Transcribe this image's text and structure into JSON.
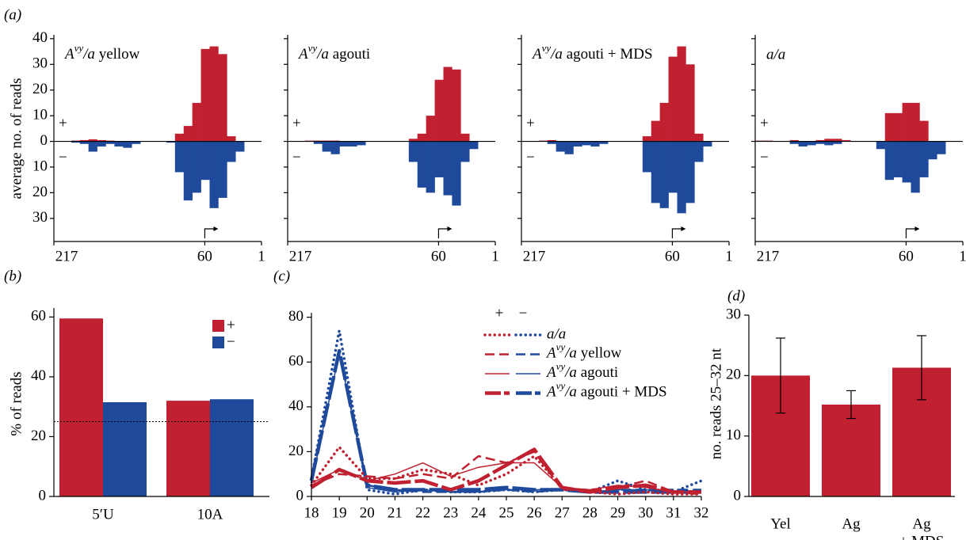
{
  "chart_data": [
    {
      "type": "mirrored_histogram",
      "panel_label": "(a)",
      "title": "Avy/a yellow",
      "ylabel": "average no. of reads",
      "plus_label": "+",
      "minus_label": "−",
      "bins": [
        217,
        208,
        199,
        190,
        181,
        172,
        163,
        154,
        145,
        136,
        127,
        118,
        109,
        100,
        91,
        82,
        73,
        64,
        55,
        46,
        37,
        28,
        19,
        10,
        1
      ],
      "xlim": [
        217,
        1
      ],
      "xticks": [
        217,
        60,
        1
      ],
      "ylim": [
        -39,
        41.5
      ],
      "yticks": [
        40,
        30,
        20,
        10,
        0,
        {
          "value": -10,
          "label": "10"
        },
        {
          "value": -20,
          "label": "20"
        },
        {
          "value": -30,
          "label": "30"
        }
      ],
      "series": [
        {
          "name": "+",
          "color": "#c0202f",
          "values": [
            0,
            0,
            0.3,
            0.5,
            0.8,
            0.5,
            0.3,
            0,
            0,
            0,
            0,
            0,
            0,
            0,
            3,
            6,
            15,
            36,
            37,
            34,
            2,
            0,
            0,
            0
          ]
        },
        {
          "name": "−",
          "color": "#1f4a9c",
          "values": [
            0,
            0,
            -0.5,
            -1,
            -4,
            -2,
            -1,
            -2,
            -2.5,
            -1,
            0,
            0,
            0,
            -0.5,
            -12,
            -23,
            -20,
            -15,
            -26,
            -22,
            -8,
            -4,
            0,
            0
          ]
        }
      ]
    },
    {
      "type": "mirrored_histogram",
      "title": "Avy/a agouti",
      "plus_label": "+",
      "minus_label": "−",
      "bins": [
        217,
        208,
        199,
        190,
        181,
        172,
        163,
        154,
        145,
        136,
        127,
        118,
        109,
        100,
        91,
        82,
        73,
        64,
        55,
        46,
        37,
        28,
        19,
        10,
        1
      ],
      "xlim": [
        217,
        1
      ],
      "xticks": [
        217,
        60,
        1
      ],
      "ylim": [
        -39,
        41.5
      ],
      "series": [
        {
          "name": "+",
          "color": "#c0202f",
          "values": [
            0,
            0,
            0.3,
            0.3,
            0.3,
            0.3,
            0,
            0,
            0,
            0,
            0,
            0,
            0,
            0,
            1,
            3,
            10,
            24,
            29,
            28,
            3,
            0,
            0,
            0
          ]
        },
        {
          "name": "−",
          "color": "#1f4a9c",
          "values": [
            0,
            0,
            0,
            -1,
            -4,
            -5,
            -2,
            -2,
            -1.5,
            0,
            0,
            0,
            0,
            0,
            -8,
            -18,
            -20,
            -14,
            -21,
            -25,
            -8,
            -3,
            0,
            0
          ]
        }
      ]
    },
    {
      "type": "mirrored_histogram",
      "title": "Avy/a agouti + MDS",
      "plus_label": "+",
      "minus_label": "−",
      "bins": [
        217,
        208,
        199,
        190,
        181,
        172,
        163,
        154,
        145,
        136,
        127,
        118,
        109,
        100,
        91,
        82,
        73,
        64,
        55,
        46,
        37,
        28,
        19,
        10,
        1
      ],
      "xlim": [
        217,
        1
      ],
      "xticks": [
        217,
        60,
        1
      ],
      "ylim": [
        -39,
        41.5
      ],
      "series": [
        {
          "name": "+",
          "color": "#c0202f",
          "values": [
            0,
            0,
            0.3,
            0.5,
            0,
            0,
            0,
            0,
            0,
            0,
            0,
            0,
            0,
            0,
            2,
            8,
            15,
            33,
            37,
            30,
            3,
            0,
            0,
            0
          ]
        },
        {
          "name": "−",
          "color": "#1f4a9c",
          "values": [
            0,
            0,
            0,
            -1,
            -4,
            -5,
            -2,
            -1.5,
            -2,
            -1,
            0,
            0,
            0,
            0,
            -12,
            -24,
            -26,
            -20,
            -28,
            -24,
            -8,
            -2,
            0,
            0
          ]
        }
      ]
    },
    {
      "type": "mirrored_histogram",
      "title": "a/a",
      "plus_label": "+",
      "minus_label": "−",
      "bins": [
        217,
        208,
        199,
        190,
        181,
        172,
        163,
        154,
        145,
        136,
        127,
        118,
        109,
        100,
        91,
        82,
        73,
        64,
        55,
        46,
        37,
        28,
        19,
        10,
        1
      ],
      "xlim": [
        217,
        1
      ],
      "xticks": [
        217,
        60,
        1
      ],
      "ylim": [
        -39,
        41.5
      ],
      "series": [
        {
          "name": "+",
          "color": "#c0202f",
          "values": [
            0.3,
            0.3,
            0,
            0,
            0.5,
            0,
            0,
            0.5,
            1,
            1,
            0.5,
            0,
            0,
            0,
            0,
            11,
            11,
            15,
            15,
            8,
            0,
            0,
            0,
            0
          ]
        },
        {
          "name": "−",
          "color": "#1f4a9c",
          "values": [
            0,
            0,
            0,
            0,
            -1,
            -2,
            -1.5,
            -1,
            -1.5,
            -1,
            0,
            0,
            0,
            0,
            -3,
            -15,
            -14,
            -16,
            -20,
            -14,
            -7,
            -5,
            0,
            0
          ]
        }
      ]
    },
    {
      "type": "bar",
      "panel_label": "(b)",
      "ylabel": "% of reads",
      "categories": [
        "5′U",
        "10A"
      ],
      "series": [
        {
          "name": "+",
          "color": "#c0202f",
          "values": [
            59.5,
            32
          ]
        },
        {
          "name": "−",
          "color": "#1f4a9c",
          "values": [
            31.5,
            32.5
          ]
        }
      ],
      "ylim": [
        0,
        63
      ],
      "yticks": [
        0,
        20,
        40,
        60
      ],
      "reference_line": 25
    },
    {
      "type": "line",
      "panel_label": "(c)",
      "legend_headers": [
        "+",
        "−"
      ],
      "x": [
        18,
        19,
        20,
        21,
        22,
        23,
        24,
        25,
        26,
        27,
        28,
        29,
        30,
        31,
        32
      ],
      "xlim": [
        18,
        32
      ],
      "xticks": [
        18,
        19,
        20,
        21,
        22,
        23,
        24,
        25,
        26,
        27,
        28,
        29,
        30,
        31,
        32
      ],
      "ylim": [
        0,
        82
      ],
      "yticks": [
        0,
        20,
        40,
        60,
        80
      ],
      "plus_color": "#c0202f",
      "minus_color": "#1f4a9c",
      "series": [
        {
          "name": "a/a",
          "style": "dotted",
          "values": [
            5,
            22,
            8,
            8,
            12,
            10,
            5,
            10,
            18,
            4,
            2,
            1,
            2,
            1,
            1
          ],
          "minus_values": [
            8,
            74,
            3,
            1,
            3,
            2,
            2,
            3,
            2,
            3,
            2,
            7,
            3,
            2,
            7
          ]
        },
        {
          "name": "Avy/a yellow",
          "style": "dashed",
          "values": [
            5,
            10,
            9,
            8,
            10,
            8,
            18,
            15,
            20,
            3,
            3,
            4,
            7,
            2,
            1
          ],
          "minus_values": [
            6,
            65,
            5,
            3,
            2,
            2,
            2,
            3,
            2,
            3,
            2,
            3,
            3,
            3,
            3
          ]
        },
        {
          "name": "Avy/a agouti",
          "style": "thin",
          "values": [
            6,
            12,
            7,
            10,
            15,
            9,
            13,
            15,
            15,
            4,
            3,
            5,
            4,
            2,
            2
          ],
          "minus_values": [
            6,
            64,
            4,
            2,
            3,
            2,
            2,
            3,
            3,
            3,
            2,
            3,
            3,
            2,
            2
          ]
        },
        {
          "name": "Avy/a agouti + MDS",
          "style": "thick",
          "values": [
            4,
            12,
            7,
            6,
            7,
            3,
            7,
            14,
            21,
            4,
            2,
            4,
            5,
            2,
            2
          ],
          "minus_values": [
            7,
            65,
            5,
            3,
            3,
            3,
            3,
            4,
            3,
            3,
            2,
            2,
            2,
            2,
            2
          ]
        }
      ]
    },
    {
      "type": "bar",
      "panel_label": "(d)",
      "ylabel": "no. reads 25–32 nt",
      "categories": [
        [
          "Yel"
        ],
        [
          "Ag"
        ],
        [
          "Ag",
          "+ MDS"
        ]
      ],
      "series": [
        {
          "color": "#c0202f",
          "values": [
            20,
            15.2,
            21.3
          ],
          "errors": [
            6.2,
            2.3,
            5.3
          ]
        }
      ],
      "ylim": [
        0,
        30
      ],
      "yticks": [
        0,
        10,
        20,
        30
      ]
    }
  ]
}
